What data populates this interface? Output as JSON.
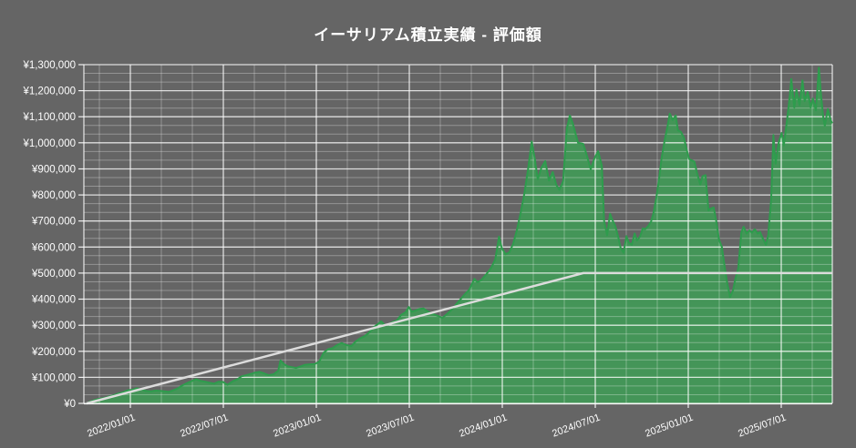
{
  "title": "イーサリアム積立実績 - 評価額",
  "colors": {
    "background": "#656565",
    "area_fill": "#449558",
    "area_stroke": "#2E9C4D",
    "cost_line": "#DCDCDC",
    "grid_minor": "rgba(255,255,255,0.30)",
    "grid_major": "rgba(255,255,255,0.78)",
    "axis": "rgba(255,255,255,0.9)",
    "text": "#FFFFFF"
  },
  "chart_data": {
    "type": "area",
    "title": "イーサリアム積立実績 - 評価額",
    "legend": "none",
    "x_axis": {
      "start": "2021/10",
      "end": "2025/10",
      "tick_labels": [
        "2022/01/01",
        "2022/07/01",
        "2023/01/01",
        "2023/07/01",
        "2024/01/01",
        "2024/07/01",
        "2025/01/01",
        "2025/07/01"
      ],
      "minor_gridlines_every_months": 2,
      "major_gridlines_every_months": 6
    },
    "y_axis": {
      "min": 0,
      "max": 1300000,
      "tick_step": 100000,
      "minor_divisions_per_step": 3,
      "tick_labels": [
        "¥0",
        "¥100,000",
        "¥200,000",
        "¥300,000",
        "¥400,000",
        "¥500,000",
        "¥600,000",
        "¥700,000",
        "¥800,000",
        "¥900,000",
        "¥1,000,000",
        "¥1,100,000",
        "¥1,200,000",
        "¥1,300,000"
      ]
    },
    "series": [
      {
        "key": "valuation",
        "style": "area",
        "points": [
          [
            0.0,
            0
          ],
          [
            0.006,
            8000
          ],
          [
            0.012,
            14000
          ],
          [
            0.018,
            18000
          ],
          [
            0.024,
            21000
          ],
          [
            0.031,
            27000
          ],
          [
            0.037,
            32000
          ],
          [
            0.043,
            38000
          ],
          [
            0.049,
            43000
          ],
          [
            0.055,
            50000
          ],
          [
            0.061,
            52000
          ],
          [
            0.067,
            58000
          ],
          [
            0.073,
            55000
          ],
          [
            0.079,
            48000
          ],
          [
            0.086,
            46000
          ],
          [
            0.092,
            49000
          ],
          [
            0.098,
            48000
          ],
          [
            0.104,
            46000
          ],
          [
            0.11,
            44000
          ],
          [
            0.116,
            50000
          ],
          [
            0.122,
            57000
          ],
          [
            0.128,
            68000
          ],
          [
            0.134,
            77000
          ],
          [
            0.141,
            86000
          ],
          [
            0.147,
            93000
          ],
          [
            0.153,
            86000
          ],
          [
            0.159,
            83000
          ],
          [
            0.165,
            79000
          ],
          [
            0.171,
            76000
          ],
          [
            0.177,
            83000
          ],
          [
            0.183,
            82000
          ],
          [
            0.189,
            71000
          ],
          [
            0.196,
            85000
          ],
          [
            0.202,
            92000
          ],
          [
            0.208,
            104000
          ],
          [
            0.214,
            108000
          ],
          [
            0.22,
            113000
          ],
          [
            0.226,
            118000
          ],
          [
            0.232,
            121000
          ],
          [
            0.238,
            115000
          ],
          [
            0.244,
            108000
          ],
          [
            0.251,
            112000
          ],
          [
            0.257,
            125000
          ],
          [
            0.26,
            165000
          ],
          [
            0.265,
            150000
          ],
          [
            0.27,
            142000
          ],
          [
            0.275,
            139000
          ],
          [
            0.281,
            136000
          ],
          [
            0.287,
            142000
          ],
          [
            0.293,
            148000
          ],
          [
            0.3,
            150000
          ],
          [
            0.306,
            151000
          ],
          [
            0.312,
            160000
          ],
          [
            0.318,
            195000
          ],
          [
            0.324,
            208000
          ],
          [
            0.33,
            212000
          ],
          [
            0.336,
            224000
          ],
          [
            0.342,
            232000
          ],
          [
            0.348,
            224000
          ],
          [
            0.355,
            220000
          ],
          [
            0.361,
            238000
          ],
          [
            0.367,
            250000
          ],
          [
            0.373,
            258000
          ],
          [
            0.379,
            272000
          ],
          [
            0.385,
            292000
          ],
          [
            0.391,
            305000
          ],
          [
            0.395,
            315000
          ],
          [
            0.4,
            300000
          ],
          [
            0.405,
            303000
          ],
          [
            0.41,
            312000
          ],
          [
            0.416,
            318000
          ],
          [
            0.422,
            340000
          ],
          [
            0.428,
            350000
          ],
          [
            0.432,
            370000
          ],
          [
            0.436,
            352000
          ],
          [
            0.441,
            356000
          ],
          [
            0.446,
            362000
          ],
          [
            0.452,
            364000
          ],
          [
            0.458,
            352000
          ],
          [
            0.465,
            342000
          ],
          [
            0.471,
            336000
          ],
          [
            0.477,
            328000
          ],
          [
            0.483,
            342000
          ],
          [
            0.489,
            358000
          ],
          [
            0.495,
            378000
          ],
          [
            0.501,
            398000
          ],
          [
            0.507,
            418000
          ],
          [
            0.513,
            435000
          ],
          [
            0.52,
            478000
          ],
          [
            0.524,
            465000
          ],
          [
            0.529,
            472000
          ],
          [
            0.535,
            492000
          ],
          [
            0.542,
            518000
          ],
          [
            0.548,
            552000
          ],
          [
            0.553,
            640000
          ],
          [
            0.557,
            595000
          ],
          [
            0.562,
            572000
          ],
          [
            0.567,
            580000
          ],
          [
            0.572,
            612000
          ],
          [
            0.577,
            665000
          ],
          [
            0.582,
            730000
          ],
          [
            0.587,
            805000
          ],
          [
            0.592,
            900000
          ],
          [
            0.597,
            1005000
          ],
          [
            0.601,
            940000
          ],
          [
            0.605,
            860000
          ],
          [
            0.61,
            905000
          ],
          [
            0.615,
            930000
          ],
          [
            0.62,
            855000
          ],
          [
            0.625,
            888000
          ],
          [
            0.63,
            838000
          ],
          [
            0.634,
            820000
          ],
          [
            0.639,
            852000
          ],
          [
            0.644,
            1055000
          ],
          [
            0.648,
            1105000
          ],
          [
            0.652,
            1075000
          ],
          [
            0.655,
            1042000
          ],
          [
            0.659,
            1000000
          ],
          [
            0.663,
            998000
          ],
          [
            0.666,
            996000
          ],
          [
            0.671,
            950000
          ],
          [
            0.676,
            898000
          ],
          [
            0.681,
            940000
          ],
          [
            0.686,
            968000
          ],
          [
            0.691,
            912000
          ],
          [
            0.694,
            700000
          ],
          [
            0.698,
            645000
          ],
          [
            0.702,
            728000
          ],
          [
            0.705,
            705000
          ],
          [
            0.709,
            680000
          ],
          [
            0.713,
            638000
          ],
          [
            0.716,
            598000
          ],
          [
            0.72,
            578000
          ],
          [
            0.724,
            642000
          ],
          [
            0.727,
            618000
          ],
          [
            0.731,
            608000
          ],
          [
            0.735,
            652000
          ],
          [
            0.738,
            625000
          ],
          [
            0.742,
            640000
          ],
          [
            0.746,
            672000
          ],
          [
            0.749,
            668000
          ],
          [
            0.753,
            680000
          ],
          [
            0.757,
            698000
          ],
          [
            0.76,
            728000
          ],
          [
            0.764,
            790000
          ],
          [
            0.768,
            868000
          ],
          [
            0.771,
            940000
          ],
          [
            0.775,
            1008000
          ],
          [
            0.779,
            1062000
          ],
          [
            0.782,
            1112000
          ],
          [
            0.786,
            1088000
          ],
          [
            0.79,
            1105000
          ],
          [
            0.793,
            1048000
          ],
          [
            0.797,
            1042000
          ],
          [
            0.801,
            1020000
          ],
          [
            0.804,
            982000
          ],
          [
            0.808,
            938000
          ],
          [
            0.812,
            932000
          ],
          [
            0.815,
            928000
          ],
          [
            0.819,
            880000
          ],
          [
            0.823,
            840000
          ],
          [
            0.826,
            872000
          ],
          [
            0.83,
            876000
          ],
          [
            0.834,
            740000
          ],
          [
            0.837,
            748000
          ],
          [
            0.841,
            752000
          ],
          [
            0.845,
            690000
          ],
          [
            0.848,
            628000
          ],
          [
            0.852,
            600000
          ],
          [
            0.856,
            518000
          ],
          [
            0.859,
            462000
          ],
          [
            0.863,
            408000
          ],
          [
            0.867,
            435000
          ],
          [
            0.87,
            478000
          ],
          [
            0.874,
            520000
          ],
          [
            0.878,
            655000
          ],
          [
            0.881,
            678000
          ],
          [
            0.885,
            652000
          ],
          [
            0.889,
            664000
          ],
          [
            0.892,
            655000
          ],
          [
            0.896,
            668000
          ],
          [
            0.9,
            652000
          ],
          [
            0.903,
            658000
          ],
          [
            0.907,
            632000
          ],
          [
            0.911,
            608000
          ],
          [
            0.914,
            645000
          ],
          [
            0.918,
            780000
          ],
          [
            0.921,
            1030000
          ],
          [
            0.924,
            920000
          ],
          [
            0.928,
            1000000
          ],
          [
            0.932,
            1038000
          ],
          [
            0.935,
            990000
          ],
          [
            0.939,
            1080000
          ],
          [
            0.943,
            1180000
          ],
          [
            0.945,
            1245000
          ],
          [
            0.949,
            1135000
          ],
          [
            0.952,
            1205000
          ],
          [
            0.956,
            1145000
          ],
          [
            0.96,
            1240000
          ],
          [
            0.963,
            1160000
          ],
          [
            0.967,
            1195000
          ],
          [
            0.971,
            1135000
          ],
          [
            0.974,
            1170000
          ],
          [
            0.978,
            1125000
          ],
          [
            0.982,
            1288000
          ],
          [
            0.985,
            1180000
          ],
          [
            0.988,
            1095000
          ],
          [
            0.99,
            1065000
          ],
          [
            0.994,
            1130000
          ],
          [
            0.998,
            1085000
          ],
          [
            1.0,
            1075000
          ]
        ]
      },
      {
        "key": "cost_basis",
        "style": "line",
        "points": [
          [
            0.0,
            0
          ],
          [
            0.666,
            500000
          ],
          [
            1.0,
            500000
          ]
        ]
      }
    ]
  }
}
